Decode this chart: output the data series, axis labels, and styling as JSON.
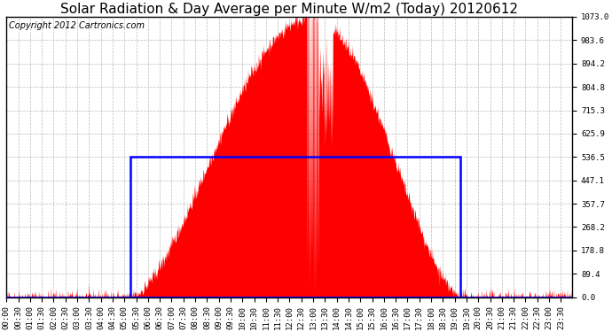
{
  "title": "Solar Radiation & Day Average per Minute W/m2 (Today) 20120612",
  "copyright": "Copyright 2012 Cartronics.com",
  "ymax": 1073.0,
  "ymin": 0.0,
  "yticks": [
    0.0,
    89.4,
    178.8,
    268.2,
    357.7,
    447.1,
    536.5,
    625.9,
    715.3,
    804.8,
    894.2,
    983.6,
    1073.0
  ],
  "day_avg_value": 536.5,
  "sunrise_minute": 315,
  "sunset_minute": 1155,
  "peak_minute": 775,
  "peak_value": 1073.0,
  "total_minutes": 1440,
  "fill_color": "#FF0000",
  "line_color": "#0000FF",
  "background_color": "#FFFFFF",
  "grid_color": "#AAAAAA",
  "title_fontsize": 11,
  "tick_fontsize": 6.5,
  "copyright_fontsize": 7
}
